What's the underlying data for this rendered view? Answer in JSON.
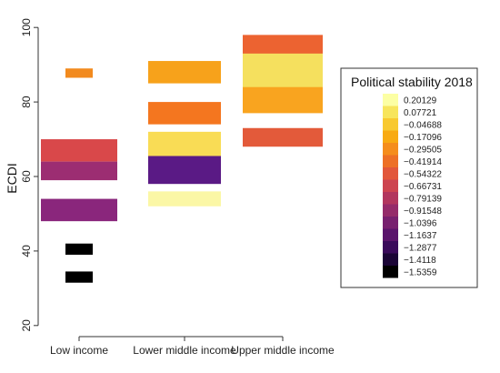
{
  "chart_data": {
    "type": "heatmap",
    "ylabel": "ECDI",
    "xlabel": "",
    "ylim": [
      18,
      102
    ],
    "yticks": [
      20,
      40,
      60,
      80,
      100
    ],
    "categories": [
      "Low income",
      "Lower middle income",
      "Upper middle income"
    ],
    "bars": [
      {
        "category": "Low income",
        "y_low": 86.5,
        "y_high": 89,
        "color": "#f28a1e"
      },
      {
        "category": "Low income",
        "y_low": 64,
        "y_high": 70,
        "color": "#d9484a"
      },
      {
        "category": "Low income",
        "y_low": 59,
        "y_high": 64,
        "color": "#9c2d72"
      },
      {
        "category": "Low income",
        "y_low": 48,
        "y_high": 54,
        "color": "#8a267c"
      },
      {
        "category": "Low income",
        "y_low": 39,
        "y_high": 42,
        "color": "#000000"
      },
      {
        "category": "Low income",
        "y_low": 31.5,
        "y_high": 34.5,
        "color": "#000000"
      },
      {
        "category": "Lower middle income",
        "y_low": 85,
        "y_high": 91,
        "color": "#f7a21b"
      },
      {
        "category": "Lower middle income",
        "y_low": 74,
        "y_high": 80,
        "color": "#f4761f"
      },
      {
        "category": "Lower middle income",
        "y_low": 65.5,
        "y_high": 72,
        "color": "#f9dc55"
      },
      {
        "category": "Lower middle income",
        "y_low": 58,
        "y_high": 65.5,
        "color": "#5a1a85"
      },
      {
        "category": "Lower middle income",
        "y_low": 52,
        "y_high": 56,
        "color": "#fbf7a6"
      },
      {
        "category": "Upper middle income",
        "y_low": 92.5,
        "y_high": 98,
        "color": "#ec6331"
      },
      {
        "category": "Upper middle income",
        "y_low": 83.5,
        "y_high": 93,
        "color": "#f5e05e"
      },
      {
        "category": "Upper middle income",
        "y_low": 77,
        "y_high": 84,
        "color": "#f9a41f"
      },
      {
        "category": "Upper middle income",
        "y_low": 68,
        "y_high": 73,
        "color": "#e35a3a"
      }
    ],
    "legend": {
      "title": "Political stability 2018",
      "entries": [
        {
          "label": "0.20129",
          "color": "#fcffa4"
        },
        {
          "label": "0.07721",
          "color": "#f7e55c"
        },
        {
          "label": "−0.04688",
          "color": "#f8c930"
        },
        {
          "label": "−0.17096",
          "color": "#f8aa12"
        },
        {
          "label": "−0.29505",
          "color": "#f58d1c"
        },
        {
          "label": "−0.41914",
          "color": "#ed7026"
        },
        {
          "label": "−0.54322",
          "color": "#e2573b"
        },
        {
          "label": "−0.66731",
          "color": "#cd4450"
        },
        {
          "label": "−0.79139",
          "color": "#b2365e"
        },
        {
          "label": "−0.91548",
          "color": "#952b6a"
        },
        {
          "label": "−1.0396",
          "color": "#78206f"
        },
        {
          "label": "−1.1637",
          "color": "#5a146c"
        },
        {
          "label": "−1.2877",
          "color": "#3a0a5b"
        },
        {
          "label": "−1.4118",
          "color": "#1b0536"
        },
        {
          "label": "−1.5359",
          "color": "#000000"
        }
      ]
    }
  }
}
